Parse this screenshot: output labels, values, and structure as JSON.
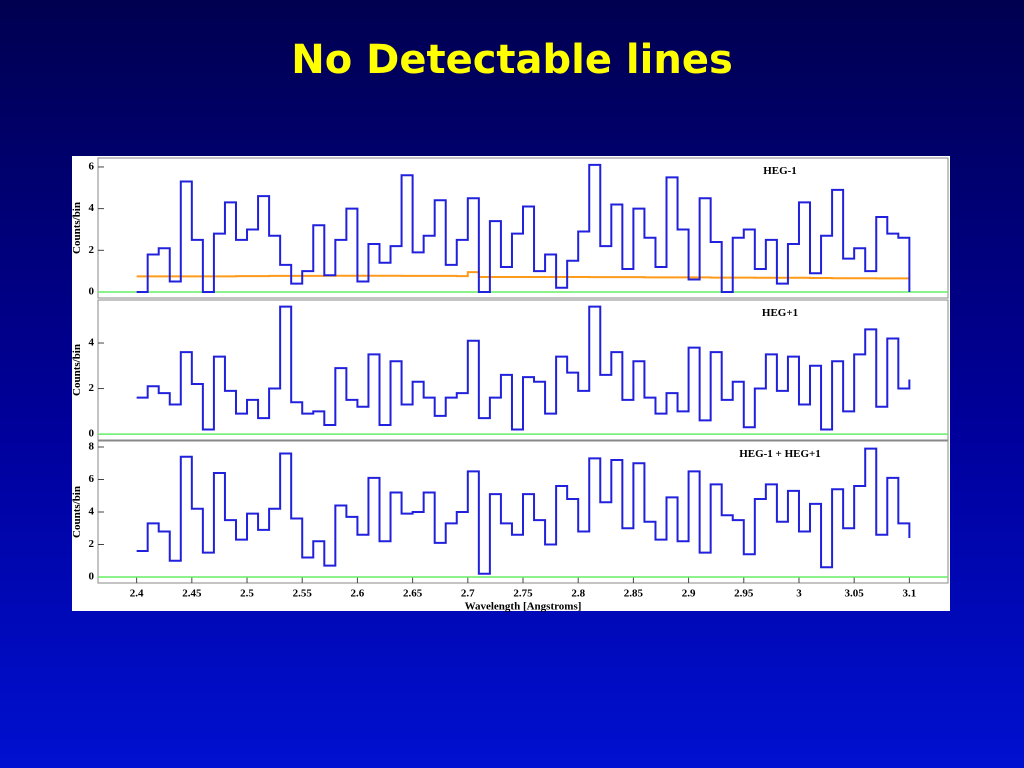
{
  "title": "No Detectable lines",
  "chart_data": [
    {
      "type": "line",
      "title": "HEG-1",
      "ylabel": "Counts/bin",
      "xlim": [
        2.365,
        3.135
      ],
      "ylim": [
        -0.29,
        6.43
      ],
      "yticks": [
        0,
        2,
        4,
        6
      ],
      "hline": 0,
      "hline_color": "#66ee66",
      "x": [
        2.4,
        2.41,
        2.42,
        2.43,
        2.44,
        2.45,
        2.46,
        2.47,
        2.48,
        2.49,
        2.5,
        2.51,
        2.52,
        2.53,
        2.54,
        2.55,
        2.56,
        2.57,
        2.58,
        2.59,
        2.6,
        2.61,
        2.62,
        2.63,
        2.64,
        2.65,
        2.66,
        2.67,
        2.68,
        2.69,
        2.7,
        2.71,
        2.72,
        2.73,
        2.74,
        2.75,
        2.76,
        2.77,
        2.78,
        2.79,
        2.8,
        2.81,
        2.82,
        2.83,
        2.84,
        2.85,
        2.86,
        2.87,
        2.88,
        2.89,
        2.9,
        2.91,
        2.92,
        2.93,
        2.94,
        2.95,
        2.96,
        2.97,
        2.98,
        2.99,
        3.0,
        3.01,
        3.02,
        3.03,
        3.04,
        3.05,
        3.06,
        3.07,
        3.08,
        3.09,
        3.1
      ],
      "series": [
        {
          "color": "#ff9a1a",
          "values": [
            0.75,
            0.75,
            0.75,
            0.75,
            0.75,
            0.75,
            0.75,
            0.75,
            0.75,
            0.76,
            0.76,
            0.76,
            0.77,
            0.77,
            0.77,
            0.77,
            0.77,
            0.78,
            0.78,
            0.78,
            0.78,
            0.78,
            0.78,
            0.78,
            0.77,
            0.77,
            0.77,
            0.77,
            0.77,
            0.76,
            0.95,
            0.72,
            0.72,
            0.72,
            0.72,
            0.72,
            0.72,
            0.72,
            0.72,
            0.72,
            0.72,
            0.71,
            0.71,
            0.71,
            0.71,
            0.71,
            0.7,
            0.7,
            0.7,
            0.7,
            0.7,
            0.7,
            0.69,
            0.69,
            0.69,
            0.69,
            0.68,
            0.68,
            0.68,
            0.68,
            0.68,
            0.67,
            0.67,
            0.66,
            0.66,
            0.66,
            0.66,
            0.65,
            0.65,
            0.65,
            0.65
          ]
        },
        {
          "color": "#2020dd",
          "values": [
            0,
            1.8,
            2.1,
            0.5,
            5.3,
            2.5,
            0,
            2.8,
            4.3,
            2.5,
            3.0,
            4.6,
            2.7,
            1.3,
            0.4,
            1.0,
            3.2,
            0.8,
            2.5,
            4.0,
            0.5,
            2.3,
            1.4,
            2.2,
            5.6,
            1.9,
            2.7,
            4.4,
            1.3,
            2.5,
            4.5,
            0,
            3.4,
            1.2,
            2.8,
            4.1,
            1.0,
            1.8,
            0.2,
            1.5,
            2.9,
            6.1,
            2.2,
            4.2,
            1.1,
            4.0,
            2.6,
            1.2,
            5.5,
            3.0,
            0.6,
            4.5,
            2.4,
            0,
            2.6,
            3.0,
            1.1,
            2.5,
            0.4,
            2.3,
            4.3,
            0.9,
            2.7,
            4.9,
            1.6,
            2.1,
            1.0,
            3.6,
            2.8,
            2.6,
            0
          ]
        }
      ]
    },
    {
      "type": "line",
      "title": "HEG+1",
      "ylabel": "Counts/bin",
      "xlim": [
        2.365,
        3.135
      ],
      "ylim": [
        -0.26,
        5.89
      ],
      "yticks": [
        0,
        2,
        4
      ],
      "hline": 0,
      "hline_color": "#66ee66",
      "x": [
        2.4,
        2.41,
        2.42,
        2.43,
        2.44,
        2.45,
        2.46,
        2.47,
        2.48,
        2.49,
        2.5,
        2.51,
        2.52,
        2.53,
        2.54,
        2.55,
        2.56,
        2.57,
        2.58,
        2.59,
        2.6,
        2.61,
        2.62,
        2.63,
        2.64,
        2.65,
        2.66,
        2.67,
        2.68,
        2.69,
        2.7,
        2.71,
        2.72,
        2.73,
        2.74,
        2.75,
        2.76,
        2.77,
        2.78,
        2.79,
        2.8,
        2.81,
        2.82,
        2.83,
        2.84,
        2.85,
        2.86,
        2.87,
        2.88,
        2.89,
        2.9,
        2.91,
        2.92,
        2.93,
        2.94,
        2.95,
        2.96,
        2.97,
        2.98,
        2.99,
        3.0,
        3.01,
        3.02,
        3.03,
        3.04,
        3.05,
        3.06,
        3.07,
        3.08,
        3.09,
        3.1
      ],
      "series": [
        {
          "color": "#2020dd",
          "values": [
            1.6,
            2.1,
            1.8,
            1.3,
            3.6,
            2.2,
            0.2,
            3.4,
            1.9,
            0.9,
            1.5,
            0.7,
            2.0,
            5.6,
            1.4,
            0.9,
            1.0,
            0.4,
            2.9,
            1.5,
            1.2,
            3.5,
            0.4,
            3.2,
            1.3,
            2.3,
            1.6,
            0.8,
            1.6,
            1.8,
            4.1,
            0.7,
            1.6,
            2.6,
            0.2,
            2.5,
            2.3,
            0.9,
            3.4,
            2.7,
            1.9,
            5.6,
            2.6,
            3.6,
            1.5,
            3.2,
            1.6,
            0.9,
            1.8,
            1.0,
            3.8,
            0.6,
            3.6,
            1.5,
            2.3,
            0.3,
            2.0,
            3.5,
            1.9,
            3.4,
            1.3,
            3.0,
            0.2,
            3.2,
            1.0,
            3.5,
            4.6,
            1.2,
            4.2,
            2.0,
            2.4
          ]
        }
      ]
    },
    {
      "type": "line",
      "title": "HEG-1 + HEG+1",
      "ylabel": "Counts/bin",
      "xlabel": "Wavelength [Angstroms]",
      "xlim": [
        2.365,
        3.135
      ],
      "ylim": [
        -0.37,
        8.37
      ],
      "yticks": [
        0,
        2,
        4,
        6,
        8
      ],
      "hline": 0,
      "hline_color": "#66ee66",
      "xticks": [
        2.4,
        2.45,
        2.5,
        2.55,
        2.6,
        2.65,
        2.7,
        2.75,
        2.8,
        2.85,
        2.9,
        2.95,
        3,
        3.05,
        3.1
      ],
      "x": [
        2.4,
        2.41,
        2.42,
        2.43,
        2.44,
        2.45,
        2.46,
        2.47,
        2.48,
        2.49,
        2.5,
        2.51,
        2.52,
        2.53,
        2.54,
        2.55,
        2.56,
        2.57,
        2.58,
        2.59,
        2.6,
        2.61,
        2.62,
        2.63,
        2.64,
        2.65,
        2.66,
        2.67,
        2.68,
        2.69,
        2.7,
        2.71,
        2.72,
        2.73,
        2.74,
        2.75,
        2.76,
        2.77,
        2.78,
        2.79,
        2.8,
        2.81,
        2.82,
        2.83,
        2.84,
        2.85,
        2.86,
        2.87,
        2.88,
        2.89,
        2.9,
        2.91,
        2.92,
        2.93,
        2.94,
        2.95,
        2.96,
        2.97,
        2.98,
        2.99,
        3.0,
        3.01,
        3.02,
        3.03,
        3.04,
        3.05,
        3.06,
        3.07,
        3.08,
        3.09,
        3.1
      ],
      "series": [
        {
          "color": "#2020dd",
          "values": [
            1.6,
            3.3,
            2.8,
            1.0,
            7.4,
            4.2,
            1.5,
            6.4,
            3.5,
            2.3,
            3.9,
            2.9,
            4.2,
            7.6,
            3.6,
            1.2,
            2.2,
            0.7,
            4.4,
            3.7,
            2.6,
            6.1,
            2.2,
            5.2,
            3.9,
            4.0,
            5.2,
            2.1,
            3.3,
            4.0,
            6.5,
            0.2,
            5.1,
            3.3,
            2.6,
            5.1,
            3.5,
            2.0,
            5.6,
            4.8,
            2.8,
            7.3,
            4.6,
            7.2,
            3.0,
            7.0,
            3.4,
            2.3,
            4.9,
            2.2,
            6.5,
            1.5,
            5.7,
            3.8,
            3.5,
            1.4,
            4.8,
            5.7,
            3.4,
            5.3,
            2.8,
            4.5,
            0.6,
            5.4,
            3.0,
            5.6,
            7.9,
            2.6,
            6.1,
            3.3,
            2.4
          ]
        }
      ]
    }
  ]
}
